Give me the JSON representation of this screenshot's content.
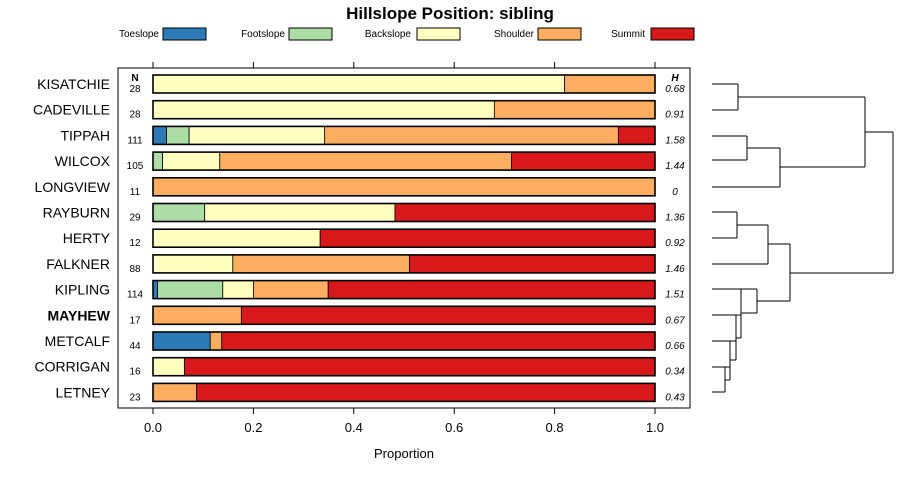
{
  "chart_data": {
    "type": "bar",
    "subtype": "stacked-horizontal-proportion",
    "title": "Hillslope Position: sibling",
    "xlabel": "Proportion",
    "xlim": [
      0,
      1
    ],
    "xticks": [
      "0.0",
      "0.2",
      "0.4",
      "0.6",
      "0.8",
      "1.0"
    ],
    "n_header": "N",
    "h_header": "H",
    "legend": [
      {
        "name": "Toeslope",
        "color": "#2c7bb6"
      },
      {
        "name": "Footslope",
        "color": "#abdda4"
      },
      {
        "name": "Backslope",
        "color": "#ffffbf"
      },
      {
        "name": "Shoulder",
        "color": "#fdae61"
      },
      {
        "name": "Summit",
        "color": "#d7191c"
      }
    ],
    "highlight": "MAYHEW",
    "rows": [
      {
        "label": "KISATCHIE",
        "n": "28",
        "h": "0.68",
        "values": [
          0,
          0,
          0.82,
          0.18,
          0
        ]
      },
      {
        "label": "CADEVILLE",
        "n": "28",
        "h": "0.91",
        "values": [
          0,
          0,
          0.68,
          0.32,
          0
        ]
      },
      {
        "label": "TIPPAH",
        "n": "111",
        "h": "1.58",
        "values": [
          0.027,
          0.045,
          0.27,
          0.585,
          0.073
        ]
      },
      {
        "label": "WILCOX",
        "n": "105",
        "h": "1.44",
        "values": [
          0,
          0.019,
          0.114,
          0.581,
          0.286
        ]
      },
      {
        "label": "LONGVIEW",
        "n": "11",
        "h": "0",
        "values": [
          0,
          0,
          0,
          1.0,
          0
        ]
      },
      {
        "label": "RAYBURN",
        "n": "29",
        "h": "1.36",
        "values": [
          0,
          0.103,
          0.379,
          0,
          0.518
        ]
      },
      {
        "label": "HERTY",
        "n": "12",
        "h": "0.92",
        "values": [
          0,
          0,
          0.333,
          0,
          0.667
        ]
      },
      {
        "label": "FALKNER",
        "n": "88",
        "h": "1.46",
        "values": [
          0,
          0,
          0.159,
          0.352,
          0.489
        ]
      },
      {
        "label": "KIPLING",
        "n": "114",
        "h": "1.51",
        "values": [
          0.009,
          0.13,
          0.061,
          0.149,
          0.651
        ]
      },
      {
        "label": "MAYHEW",
        "n": "17",
        "h": "0.67",
        "values": [
          0,
          0,
          0,
          0.176,
          0.824
        ]
      },
      {
        "label": "METCALF",
        "n": "44",
        "h": "0.66",
        "values": [
          0.114,
          0,
          0,
          0.023,
          0.863
        ]
      },
      {
        "label": "CORRIGAN",
        "n": "16",
        "h": "0.34",
        "values": [
          0,
          0,
          0.0625,
          0,
          0.9375
        ]
      },
      {
        "label": "LETNEY",
        "n": "23",
        "h": "0.43",
        "values": [
          0,
          0,
          0,
          0.087,
          0.913
        ]
      }
    ]
  }
}
